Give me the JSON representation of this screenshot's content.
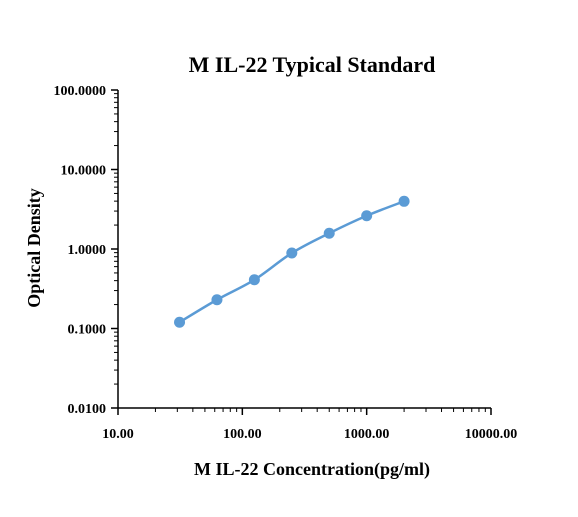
{
  "chart_data": {
    "type": "line",
    "title": "M IL-22 Typical Standard",
    "xlabel": "M IL-22 Concentration(pg/ml)",
    "ylabel": "Optical Density",
    "xscale": "log",
    "yscale": "log",
    "xlim": [
      10,
      10000
    ],
    "ylim": [
      0.01,
      100
    ],
    "x_ticks": [
      "10.00",
      "100.00",
      "1000.00",
      "10000.00"
    ],
    "y_ticks": [
      "0.0100",
      "0.1000",
      "1.0000",
      "10.0000",
      "100.0000"
    ],
    "grid": false,
    "legend": "none",
    "series": [
      {
        "color": "#5b9bd5",
        "x": [
          31.25,
          62.5,
          125,
          250,
          500,
          1000,
          2000
        ],
        "y": [
          0.12,
          0.23,
          0.41,
          0.89,
          1.58,
          2.62,
          3.98
        ]
      }
    ]
  }
}
